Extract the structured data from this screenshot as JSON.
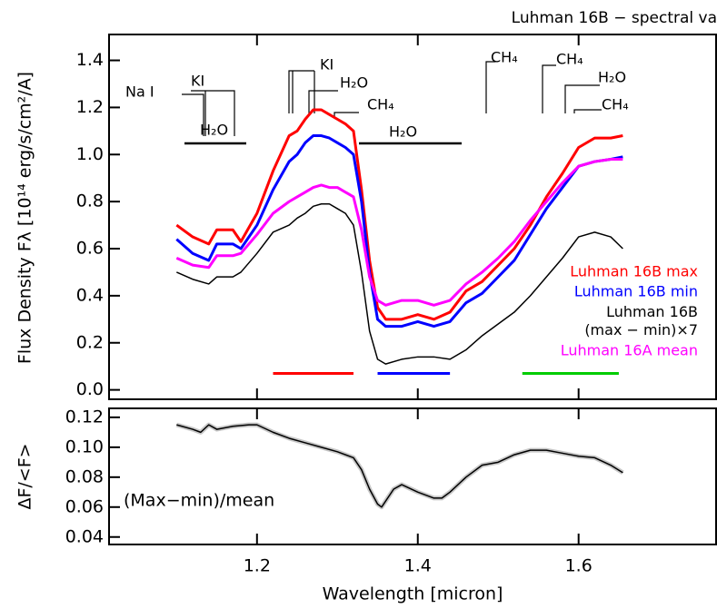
{
  "chart_data": [
    {
      "type": "line",
      "title": "Luhman 16B − spectral va",
      "ylabel": "Flux Density Fλ [10¹⁴ erg/s/cm²/A]",
      "xlim": [
        1.016,
        1.771
      ],
      "ylim": [
        -0.04,
        1.51
      ],
      "xticks": [
        1.2,
        1.4,
        1.6
      ],
      "yticks": [
        {
          "value": 0,
          "label": "0.0"
        },
        0.2,
        0.4,
        0.6,
        0.8,
        {
          "value": 1,
          "label": "1.0"
        },
        1.2,
        1.4
      ],
      "x": [
        1.1,
        1.12,
        1.14,
        1.15,
        1.17,
        1.18,
        1.2,
        1.22,
        1.24,
        1.25,
        1.26,
        1.27,
        1.28,
        1.29,
        1.3,
        1.31,
        1.32,
        1.33,
        1.34,
        1.35,
        1.36,
        1.38,
        1.4,
        1.42,
        1.44,
        1.46,
        1.48,
        1.5,
        1.52,
        1.54,
        1.56,
        1.58,
        1.6,
        1.62,
        1.64,
        1.655
      ],
      "series": [
        {
          "name": "Luhman 16B max",
          "color": "#ff0000",
          "values": [
            0.7,
            0.65,
            0.62,
            0.68,
            0.68,
            0.63,
            0.75,
            0.93,
            1.08,
            1.1,
            1.15,
            1.19,
            1.19,
            1.17,
            1.15,
            1.13,
            1.1,
            0.85,
            0.55,
            0.35,
            0.3,
            0.3,
            0.32,
            0.3,
            0.33,
            0.42,
            0.46,
            0.53,
            0.6,
            0.7,
            0.82,
            0.92,
            1.03,
            1.07,
            1.07,
            1.08
          ]
        },
        {
          "name": "Luhman 16B min",
          "color": "#0000ff",
          "values": [
            0.64,
            0.58,
            0.55,
            0.62,
            0.62,
            0.6,
            0.7,
            0.85,
            0.97,
            1.0,
            1.05,
            1.08,
            1.08,
            1.07,
            1.05,
            1.03,
            1.0,
            0.8,
            0.5,
            0.3,
            0.27,
            0.27,
            0.29,
            0.27,
            0.29,
            0.37,
            0.41,
            0.48,
            0.55,
            0.66,
            0.77,
            0.86,
            0.95,
            0.97,
            0.98,
            0.99
          ]
        },
        {
          "name": "Luhman 16B\n(max − min)×7",
          "color": "#000000",
          "values": [
            0.5,
            0.47,
            0.45,
            0.48,
            0.48,
            0.5,
            0.58,
            0.67,
            0.7,
            0.73,
            0.75,
            0.78,
            0.79,
            0.79,
            0.77,
            0.75,
            0.7,
            0.5,
            0.25,
            0.13,
            0.11,
            0.13,
            0.14,
            0.14,
            0.13,
            0.17,
            0.23,
            0.28,
            0.33,
            0.4,
            0.48,
            0.56,
            0.65,
            0.67,
            0.65,
            0.6
          ]
        },
        {
          "name": "Luhman 16A mean",
          "color": "#ff00ff",
          "values": [
            0.56,
            0.53,
            0.52,
            0.57,
            0.57,
            0.58,
            0.66,
            0.75,
            0.8,
            0.82,
            0.84,
            0.86,
            0.87,
            0.86,
            0.86,
            0.84,
            0.82,
            0.68,
            0.48,
            0.38,
            0.36,
            0.38,
            0.38,
            0.36,
            0.38,
            0.45,
            0.5,
            0.56,
            0.63,
            0.72,
            0.8,
            0.88,
            0.95,
            0.97,
            0.98,
            0.98
          ]
        }
      ],
      "bands": [
        {
          "color": "#ff0000",
          "x": [
            1.22,
            1.32
          ],
          "y": 0.07
        },
        {
          "color": "#0000ff",
          "x": [
            1.35,
            1.44
          ],
          "y": 0.07
        },
        {
          "color": "#00cc00",
          "x": [
            1.53,
            1.65
          ],
          "y": 0.07
        }
      ],
      "features": [
        "Na I",
        "KI",
        "H₂O",
        "KI",
        "H₂O",
        "CH₄",
        "H₂O",
        "CH₄",
        "CH₄",
        "H₂O",
        "CH₄"
      ]
    },
    {
      "type": "line",
      "ylabel": "ΔF/<F>",
      "xlabel": "Wavelength [micron]",
      "annotation": "(Max−min)/mean",
      "xlim": [
        1.016,
        1.771
      ],
      "ylim": [
        0.035,
        0.126
      ],
      "xticks": [
        1.2,
        1.4,
        1.6
      ],
      "yticks": [
        0.04,
        0.06,
        0.08,
        {
          "value": 0.1,
          "label": "0.10"
        },
        0.12
      ],
      "x": [
        1.1,
        1.12,
        1.13,
        1.14,
        1.15,
        1.17,
        1.19,
        1.2,
        1.22,
        1.24,
        1.26,
        1.28,
        1.3,
        1.32,
        1.33,
        1.34,
        1.35,
        1.355,
        1.37,
        1.38,
        1.4,
        1.42,
        1.43,
        1.44,
        1.46,
        1.48,
        1.5,
        1.52,
        1.54,
        1.56,
        1.58,
        1.6,
        1.62,
        1.64,
        1.655
      ],
      "series": [
        {
          "color": "#000000",
          "values": [
            0.115,
            0.112,
            0.11,
            0.115,
            0.112,
            0.114,
            0.115,
            0.115,
            0.11,
            0.106,
            0.103,
            0.1,
            0.097,
            0.093,
            0.085,
            0.072,
            0.062,
            0.06,
            0.072,
            0.075,
            0.07,
            0.066,
            0.066,
            0.07,
            0.08,
            0.088,
            0.09,
            0.095,
            0.098,
            0.098,
            0.096,
            0.094,
            0.093,
            0.088,
            0.083
          ]
        }
      ]
    }
  ]
}
